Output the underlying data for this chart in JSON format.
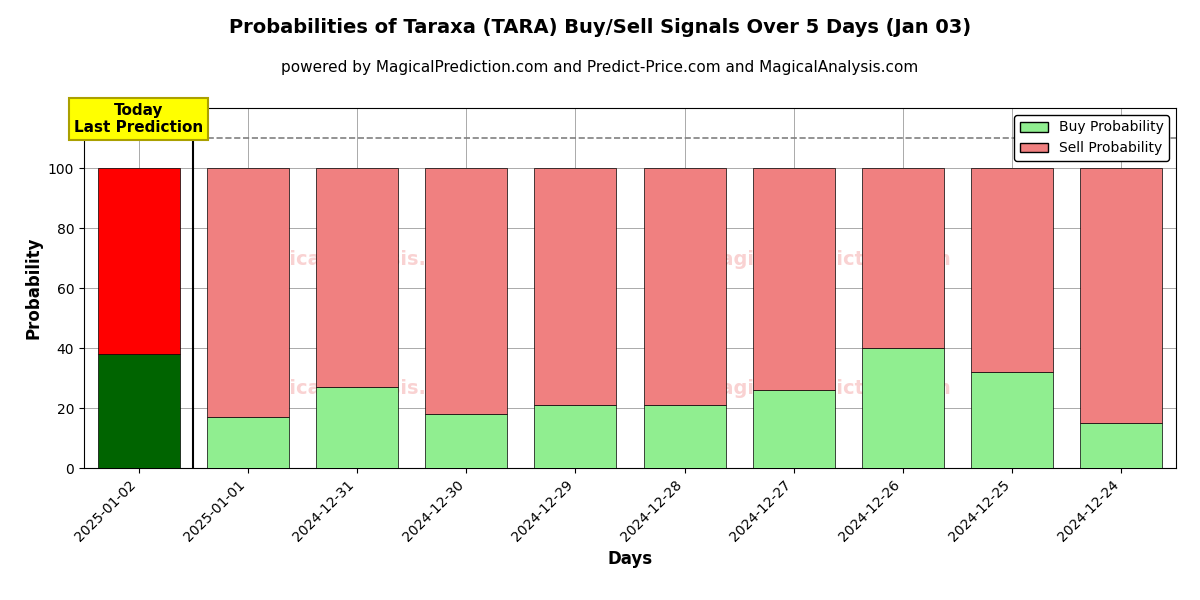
{
  "title": "Probabilities of Taraxa (TARA) Buy/Sell Signals Over 5 Days (Jan 03)",
  "subtitle": "powered by MagicalPrediction.com and Predict-Price.com and MagicalAnalysis.com",
  "xlabel": "Days",
  "ylabel": "Probability",
  "categories": [
    "2025-01-02",
    "2025-01-01",
    "2024-12-31",
    "2024-12-30",
    "2024-12-29",
    "2024-12-28",
    "2024-12-27",
    "2024-12-26",
    "2024-12-25",
    "2024-12-24"
  ],
  "buy_values": [
    38,
    17,
    27,
    18,
    21,
    21,
    26,
    40,
    32,
    15
  ],
  "sell_values": [
    62,
    83,
    73,
    82,
    79,
    79,
    74,
    60,
    68,
    85
  ],
  "today_buy_color": "#006400",
  "today_sell_color": "#ff0000",
  "buy_color": "#90ee90",
  "sell_color": "#f08080",
  "today_annotation_bg": "#ffff00",
  "today_annotation_text": "Today\nLast Prediction",
  "today_annotation_fontsize": 11,
  "ylim": [
    0,
    120
  ],
  "yticks": [
    0,
    20,
    40,
    60,
    80,
    100
  ],
  "dashed_line_y": 110,
  "watermark_color": "#f08080",
  "watermark_alpha": 0.35,
  "title_fontsize": 14,
  "subtitle_fontsize": 11,
  "axis_label_fontsize": 12,
  "tick_fontsize": 10,
  "legend_fontsize": 10,
  "bar_edge_color": "#000000",
  "bar_linewidth": 0.5,
  "grid_color": "#aaaaaa",
  "grid_linewidth": 0.7,
  "separator_color": "#000000",
  "separator_linewidth": 1.5
}
